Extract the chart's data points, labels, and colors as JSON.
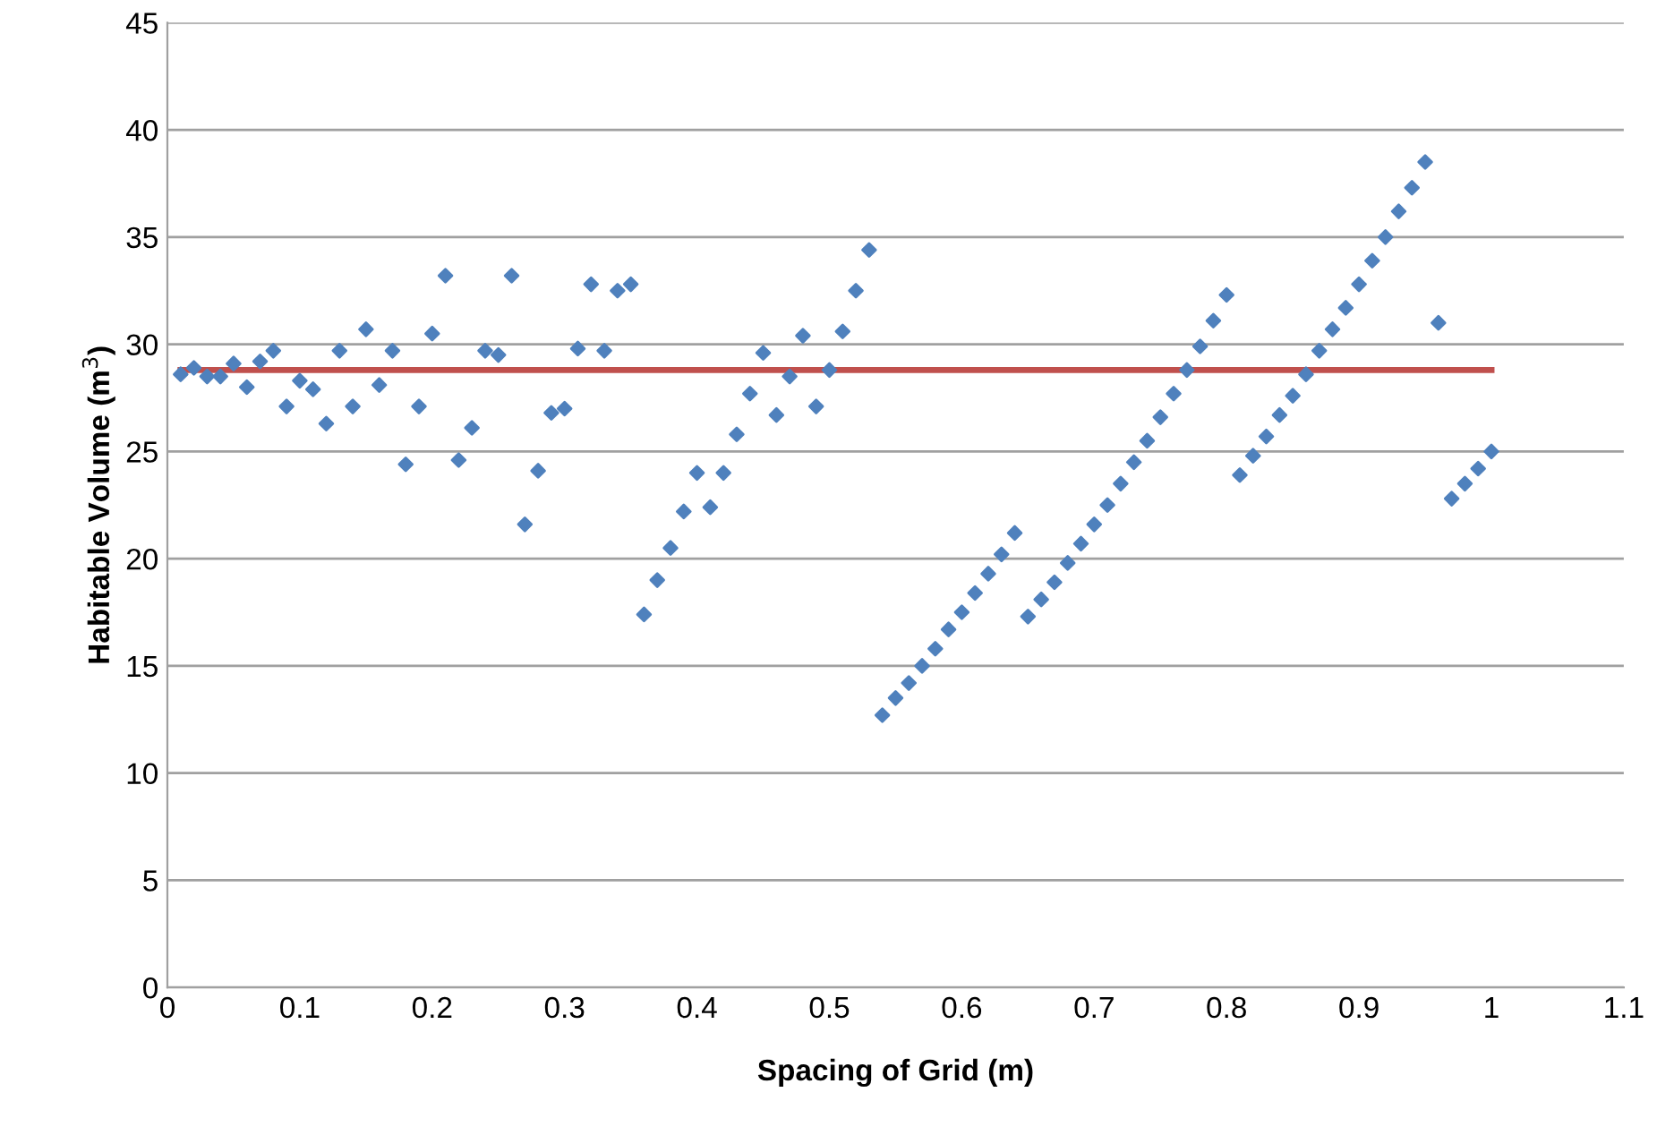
{
  "chart_data": {
    "type": "scatter",
    "xlabel": "Spacing of Grid (m)",
    "ylabel": "Habitable Volume (m$^{3}$)",
    "xlim": [
      0,
      1.1
    ],
    "xticks": [
      0,
      0.1,
      0.2,
      0.3,
      0.4,
      0.5,
      0.6,
      0.7,
      0.8,
      0.9,
      1,
      1.1
    ],
    "ylim": [
      0,
      45
    ],
    "yticks": [
      0,
      5,
      10,
      15,
      20,
      25,
      30,
      35,
      40,
      45
    ],
    "grid": "y",
    "legend": false,
    "series": [
      {
        "color": "#4f81bd",
        "marker": "diamond",
        "x": [
          0.01,
          0.02,
          0.03,
          0.04,
          0.05,
          0.06,
          0.07,
          0.08,
          0.09,
          0.1,
          0.11,
          0.12,
          0.13,
          0.14,
          0.15,
          0.16,
          0.17,
          0.18,
          0.19,
          0.2,
          0.21,
          0.22,
          0.23,
          0.24,
          0.25,
          0.26,
          0.27,
          0.28,
          0.29,
          0.3,
          0.31,
          0.32,
          0.33,
          0.34,
          0.35,
          0.36,
          0.37,
          0.38,
          0.39,
          0.4,
          0.41,
          0.42,
          0.43,
          0.44,
          0.45,
          0.46,
          0.47,
          0.48,
          0.49,
          0.5,
          0.51,
          0.52,
          0.53,
          0.54,
          0.55,
          0.56,
          0.57,
          0.58,
          0.59,
          0.6,
          0.61,
          0.62,
          0.63,
          0.64,
          0.65,
          0.66,
          0.67,
          0.68,
          0.69,
          0.7,
          0.71,
          0.72,
          0.73,
          0.74,
          0.75,
          0.76,
          0.77,
          0.78,
          0.79,
          0.8,
          0.81,
          0.82,
          0.83,
          0.84,
          0.85,
          0.86,
          0.87,
          0.88,
          0.89,
          0.9,
          0.91,
          0.92,
          0.93,
          0.94,
          0.95,
          0.96,
          0.97,
          0.98,
          0.99,
          1.0
        ],
        "values": [
          28.6,
          28.9,
          28.5,
          28.5,
          29.1,
          28.0,
          29.2,
          29.7,
          27.1,
          28.3,
          27.9,
          26.3,
          29.7,
          27.1,
          30.7,
          28.1,
          29.7,
          24.4,
          27.1,
          30.5,
          33.2,
          24.6,
          26.1,
          29.7,
          29.5,
          33.2,
          21.6,
          24.1,
          26.8,
          27.0,
          29.8,
          32.8,
          29.7,
          32.5,
          32.8,
          17.4,
          19.0,
          20.5,
          22.2,
          24.0,
          22.4,
          24.0,
          25.8,
          27.7,
          29.6,
          26.7,
          28.5,
          30.4,
          27.1,
          28.8,
          30.6,
          32.5,
          34.4,
          12.7,
          13.5,
          14.2,
          15.0,
          15.8,
          16.7,
          17.5,
          18.4,
          19.3,
          20.2,
          21.2,
          17.3,
          18.1,
          18.9,
          19.8,
          20.7,
          21.6,
          22.5,
          23.5,
          24.5,
          25.5,
          26.6,
          27.7,
          28.8,
          29.9,
          31.1,
          32.3,
          23.9,
          24.8,
          25.7,
          26.7,
          27.6,
          28.6,
          29.7,
          30.7,
          31.7,
          32.8,
          33.9,
          35.0,
          36.2,
          37.3,
          38.5,
          31.0,
          22.8,
          23.5,
          24.2,
          25.0
        ]
      },
      {
        "type": "line",
        "color": "#c0504d",
        "marker": "none",
        "line_style": "solid",
        "x": [
          0.01,
          1.0
        ],
        "values": [
          28.8,
          28.8
        ]
      }
    ]
  }
}
